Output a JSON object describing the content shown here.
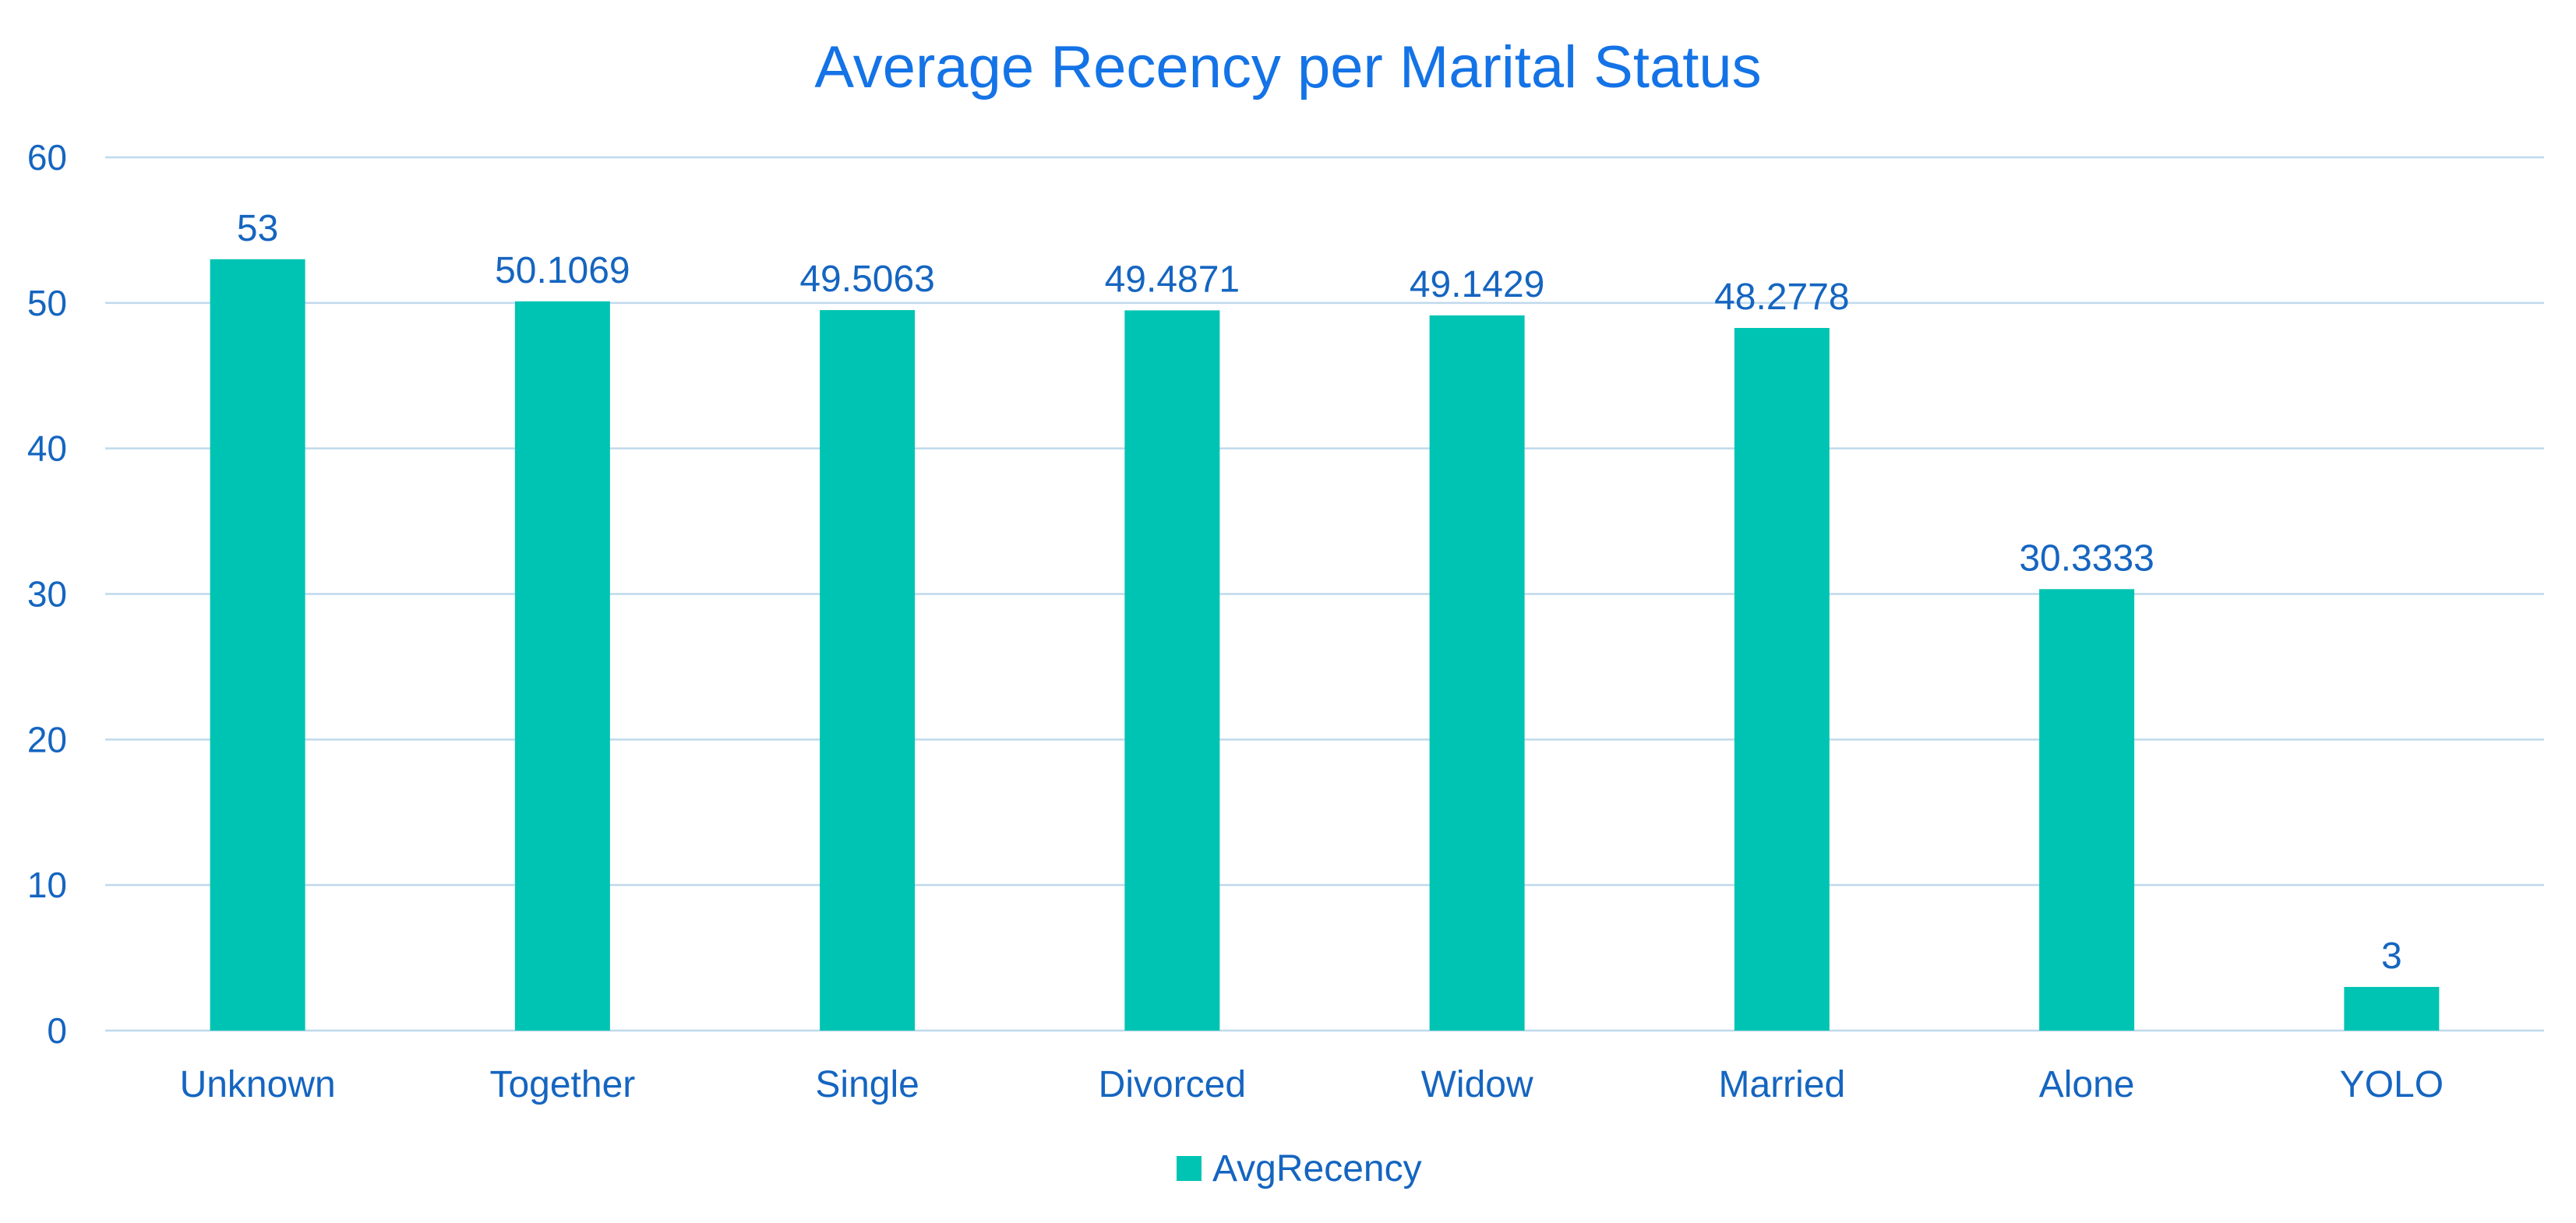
{
  "colors": {
    "title": "#1473E6",
    "text": "#1565C0",
    "bar": "#00C4B3",
    "grid": "#BFD9EC",
    "background": "#FFFFFF"
  },
  "chart_data": {
    "type": "bar",
    "title": "Average Recency per Marital Status",
    "xlabel": "",
    "ylabel": "",
    "ylim": [
      0,
      60
    ],
    "yticks": [
      0,
      10,
      20,
      30,
      40,
      50,
      60
    ],
    "grid": true,
    "legend_position": "bottom",
    "categories": [
      "Unknown",
      "Together",
      "Single",
      "Divorced",
      "Widow",
      "Married",
      "Alone",
      "YOLO"
    ],
    "series": [
      {
        "name": "AvgRecency",
        "values": [
          53,
          50.1069,
          49.5063,
          49.4871,
          49.1429,
          48.2778,
          30.3333,
          3
        ],
        "labels": [
          "53",
          "50.1069",
          "49.5063",
          "49.4871",
          "49.1429",
          "48.2778",
          "30.3333",
          "3"
        ]
      }
    ]
  }
}
